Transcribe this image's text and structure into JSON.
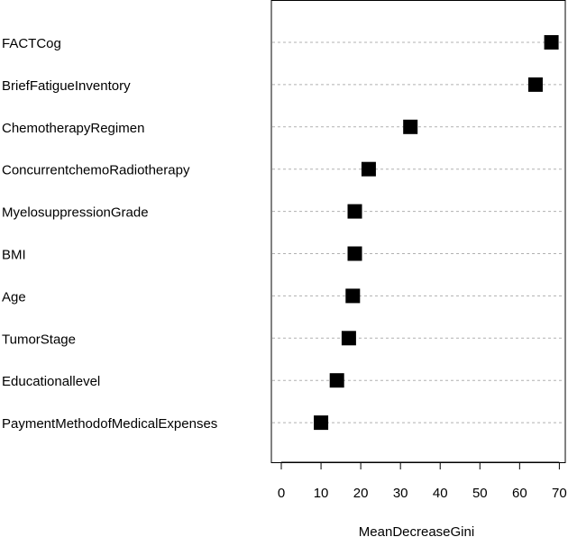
{
  "chart_data": {
    "type": "scatter",
    "style": "dotchart",
    "categories": [
      "FACTCog",
      "BriefFatigueInventory",
      "ChemotherapyRegimen",
      "ConcurrentchemoRadiotherapy",
      "MyelosuppressionGrade",
      "BMI",
      "Age",
      "TumorStage",
      "Educationallevel",
      "PaymentMethodofMedicalExpenses"
    ],
    "values": [
      68,
      64,
      32.5,
      22,
      18.5,
      18.5,
      18,
      17,
      14,
      10
    ],
    "xlabel": "MeanDecreaseGini",
    "xlim": [
      -2.5,
      71.5
    ],
    "xticks": [
      0,
      10,
      20,
      30,
      40,
      50,
      60,
      70
    ],
    "grid": "dotted horizontal",
    "marker": "square",
    "marker_color": "#000000",
    "grid_color": "#b0b0b0"
  }
}
